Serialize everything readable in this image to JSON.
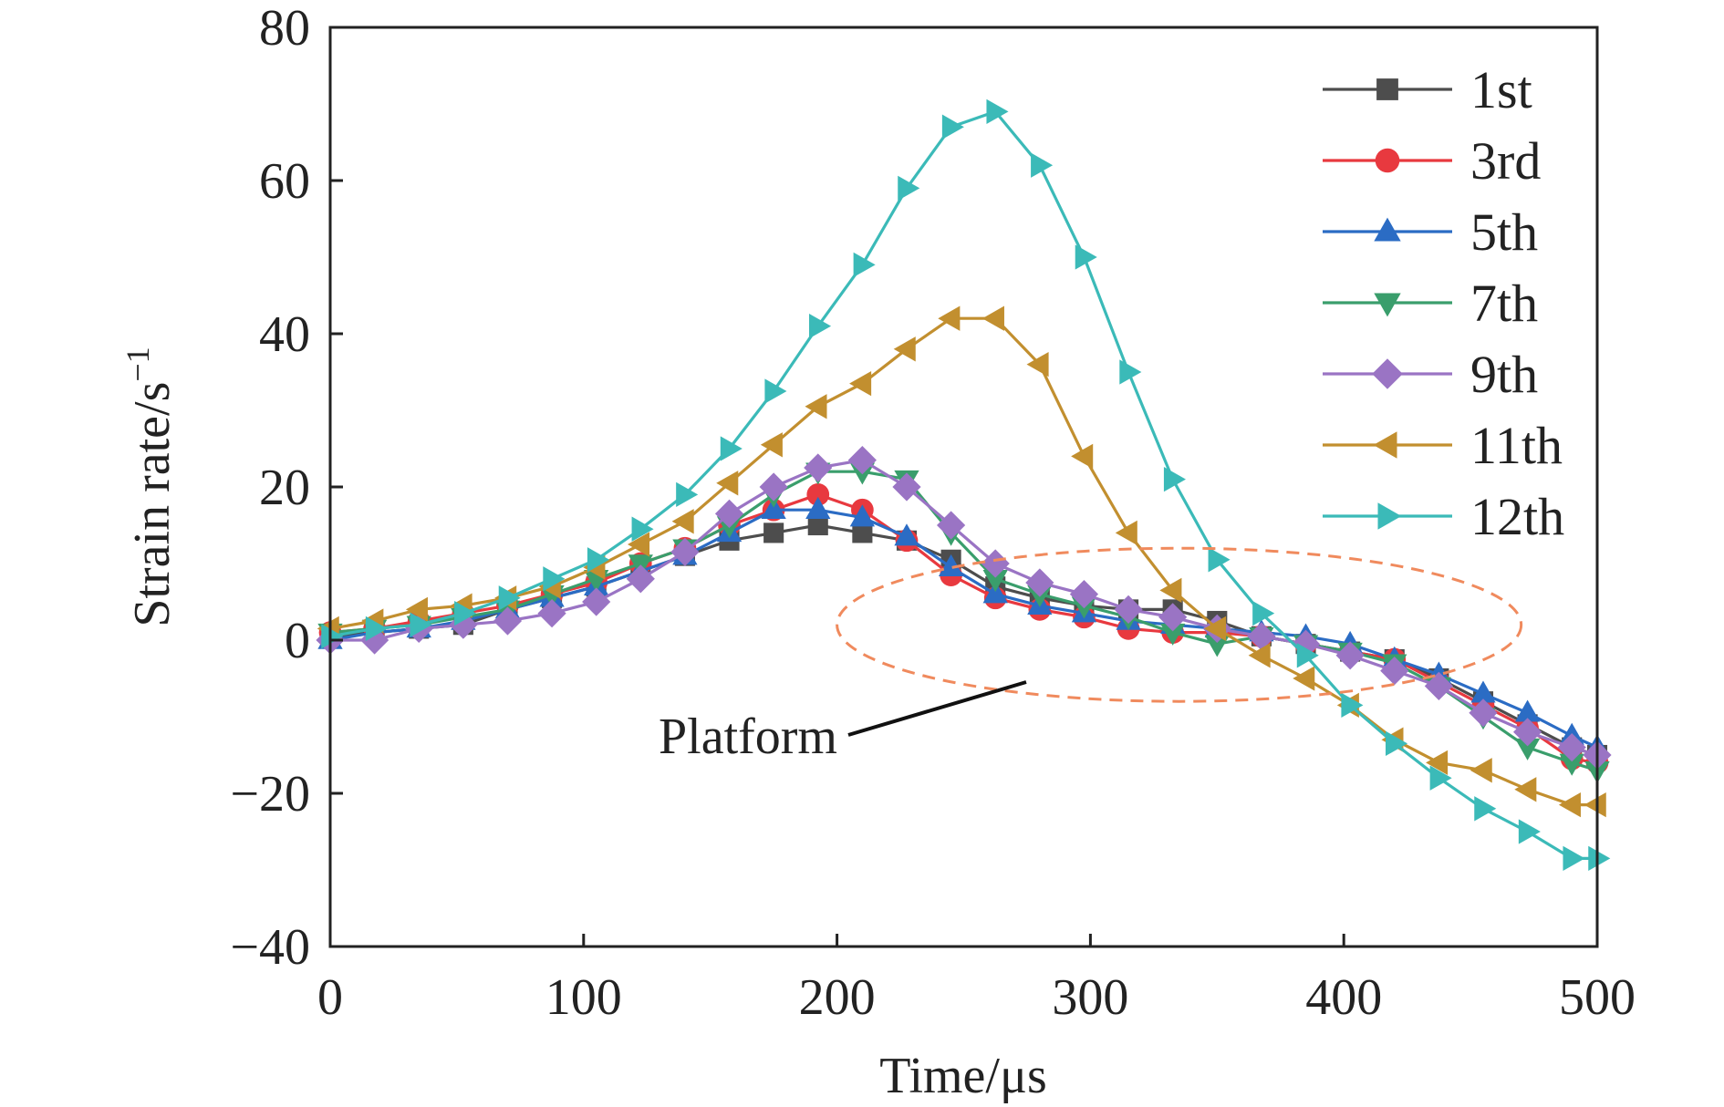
{
  "chart_data": {
    "type": "line",
    "xlabel": "Time/μs",
    "ylabel": "Strain rate/s",
    "ylabel_superscript": "−1",
    "xlim": [
      0,
      500
    ],
    "ylim": [
      -40,
      80
    ],
    "xticks": [
      0,
      100,
      200,
      300,
      400,
      500
    ],
    "yticks": [
      -40,
      -20,
      0,
      20,
      40,
      60,
      80
    ],
    "grid": false,
    "legend_position": "top-right",
    "annotation": {
      "label": "Platform",
      "ellipse_center": [
        335,
        2
      ],
      "ellipse_radii": [
        135,
        10
      ]
    },
    "series": [
      {
        "name": "1st",
        "color": "#4d4d4d",
        "marker": "square",
        "x": [
          0,
          17.5,
          35,
          52.5,
          70,
          87.5,
          105,
          122.5,
          140,
          157.5,
          175,
          192.5,
          210,
          227.5,
          245,
          262.5,
          280,
          297.5,
          315,
          332.5,
          350,
          367.5,
          385,
          402.5,
          420,
          437.5,
          455,
          472.5,
          490,
          500
        ],
        "y": [
          0.5,
          1,
          1.5,
          2,
          4,
          5.5,
          7,
          9,
          11,
          13,
          14,
          15,
          14,
          13,
          10.5,
          7,
          5.5,
          4.5,
          4,
          4,
          2.5,
          0.5,
          -0.5,
          -1.5,
          -2.5,
          -5,
          -8,
          -11,
          -14,
          -15
        ]
      },
      {
        "name": "3rd",
        "color": "#e8393f",
        "marker": "circle",
        "x": [
          0,
          17.5,
          35,
          52.5,
          70,
          87.5,
          105,
          122.5,
          140,
          157.5,
          175,
          192.5,
          210,
          227.5,
          245,
          262.5,
          280,
          297.5,
          315,
          332.5,
          350,
          367.5,
          385,
          402.5,
          420,
          437.5,
          455,
          472.5,
          490,
          500
        ],
        "y": [
          1,
          1.5,
          2.5,
          3.5,
          4.5,
          6,
          7.5,
          10,
          12,
          15,
          17,
          19,
          17,
          13,
          8.5,
          5.5,
          4,
          3,
          1.5,
          1,
          1,
          0.5,
          -0.5,
          -1.5,
          -2.5,
          -5.5,
          -8.5,
          -11.5,
          -15.5,
          -16
        ]
      },
      {
        "name": "5th",
        "color": "#2b6cc4",
        "marker": "triangle-up",
        "x": [
          0,
          17.5,
          35,
          52.5,
          70,
          87.5,
          105,
          122.5,
          140,
          157.5,
          175,
          192.5,
          210,
          227.5,
          245,
          262.5,
          280,
          297.5,
          315,
          332.5,
          350,
          367.5,
          385,
          402.5,
          420,
          437.5,
          455,
          472.5,
          490,
          500
        ],
        "y": [
          0,
          1,
          1.5,
          2.5,
          4,
          5.5,
          7,
          9,
          11,
          14,
          17,
          17,
          16,
          13.5,
          9.5,
          6,
          4.5,
          3.5,
          2.5,
          2,
          1.5,
          1,
          0.5,
          -0.5,
          -2.5,
          -4.5,
          -7,
          -9.5,
          -12.5,
          -14
        ]
      },
      {
        "name": "7th",
        "color": "#3a9e6c",
        "marker": "triangle-down",
        "x": [
          0,
          17.5,
          35,
          52.5,
          70,
          87.5,
          105,
          122.5,
          140,
          157.5,
          175,
          192.5,
          210,
          227.5,
          245,
          262.5,
          280,
          297.5,
          315,
          332.5,
          350,
          367.5,
          385,
          402.5,
          420,
          437.5,
          455,
          472.5,
          490,
          500
        ],
        "y": [
          1,
          1.5,
          2,
          3,
          4,
          6,
          8,
          10,
          12,
          15,
          19,
          22,
          22,
          21,
          14,
          8,
          6,
          4.5,
          3,
          1,
          -0.5,
          0.5,
          -0.5,
          -1.5,
          -3,
          -6,
          -10,
          -14,
          -16,
          -17
        ]
      },
      {
        "name": "9th",
        "color": "#9a74c4",
        "marker": "diamond",
        "x": [
          0,
          17.5,
          35,
          52.5,
          70,
          87.5,
          105,
          122.5,
          140,
          157.5,
          175,
          192.5,
          210,
          227.5,
          245,
          262.5,
          280,
          297.5,
          315,
          332.5,
          350,
          367.5,
          385,
          402.5,
          420,
          437.5,
          455,
          472.5,
          490,
          500
        ],
        "y": [
          0,
          0,
          1.5,
          2,
          2.5,
          3.5,
          5,
          8,
          11.5,
          16.5,
          20,
          22.5,
          23.5,
          20,
          15,
          10,
          7.5,
          6,
          4,
          3,
          1.5,
          0.5,
          -0.5,
          -2,
          -4,
          -6,
          -9.5,
          -12,
          -14,
          -15
        ]
      },
      {
        "name": "11th",
        "color": "#c28f2f",
        "marker": "triangle-left",
        "x": [
          0,
          17.5,
          35,
          52.5,
          70,
          87.5,
          105,
          122.5,
          140,
          157.5,
          175,
          192.5,
          210,
          227.5,
          245,
          262.5,
          280,
          297.5,
          315,
          332.5,
          350,
          367.5,
          385,
          402.5,
          420,
          437.5,
          455,
          472.5,
          490,
          500
        ],
        "y": [
          1.5,
          2.5,
          4,
          4.5,
          5.5,
          7,
          9.5,
          12.5,
          15.5,
          20.5,
          25.5,
          30.5,
          33.5,
          38,
          42,
          42,
          36,
          24,
          14,
          6.5,
          1.5,
          -2,
          -5,
          -8.5,
          -13,
          -16,
          -17,
          -19.5,
          -21.5,
          -21.5
        ]
      },
      {
        "name": "12th",
        "color": "#3bbab8",
        "marker": "triangle-right",
        "x": [
          0,
          17.5,
          35,
          52.5,
          70,
          87.5,
          105,
          122.5,
          140,
          157.5,
          175,
          192.5,
          210,
          227.5,
          245,
          262.5,
          280,
          297.5,
          315,
          332.5,
          350,
          367.5,
          385,
          402.5,
          420,
          437.5,
          455,
          472.5,
          490,
          500
        ],
        "y": [
          0.5,
          1.5,
          2,
          3.5,
          5.5,
          8,
          10.5,
          14.5,
          19,
          25,
          32.5,
          41,
          49,
          59,
          67,
          69,
          62,
          50,
          35,
          21,
          10.5,
          3.5,
          -2,
          -8.5,
          -13.5,
          -18,
          -22,
          -25,
          -28.5,
          -28.5
        ]
      }
    ]
  }
}
